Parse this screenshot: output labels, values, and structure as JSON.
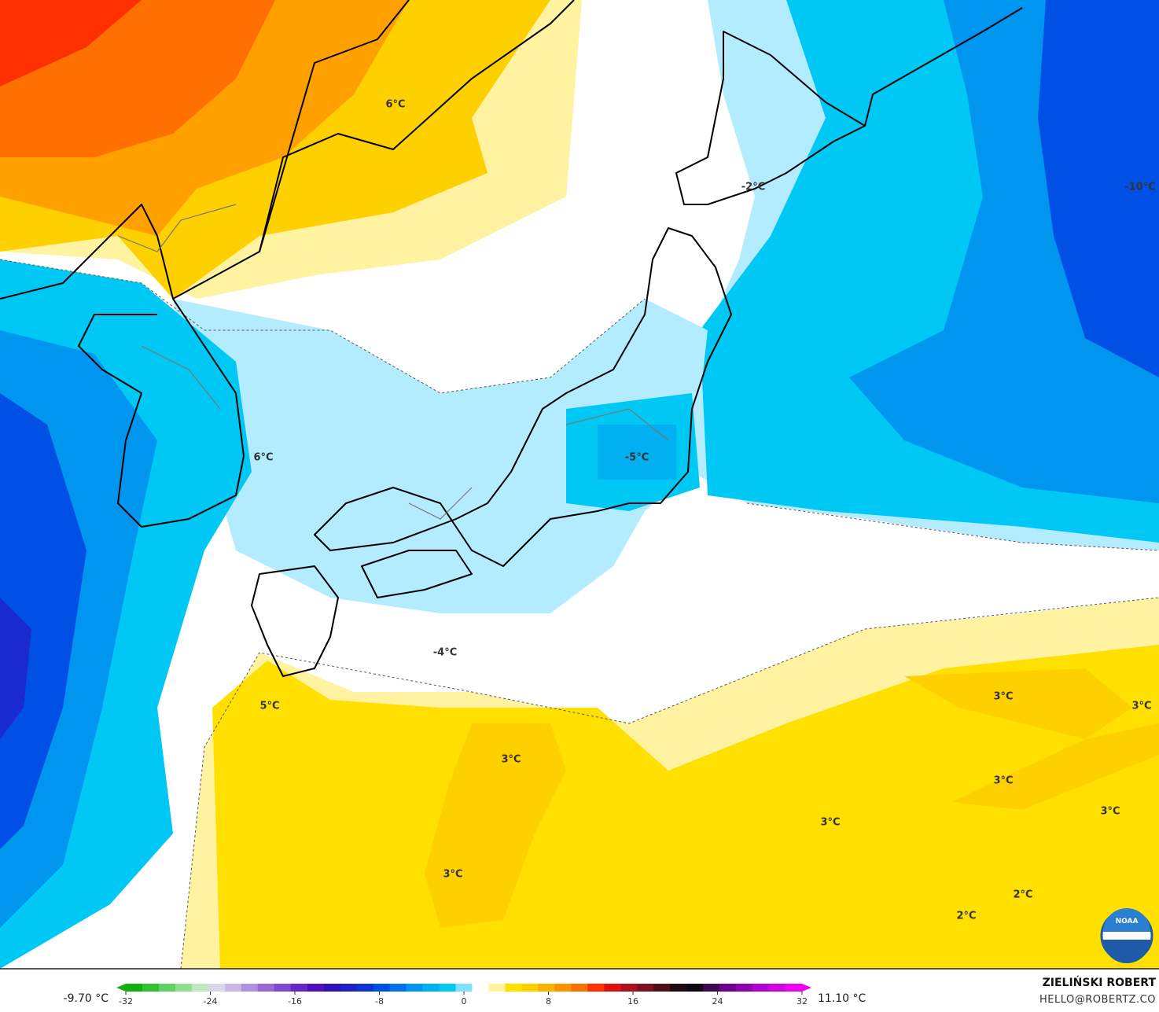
{
  "map": {
    "contour_labels": [
      "6°C",
      "-2°C",
      "-10°C",
      "6°C",
      "-5°C",
      "-4°C",
      "5°C",
      "3°C",
      "3°C",
      "3°C",
      "3°C",
      "3°C",
      "3°C",
      "2°C",
      "2°C"
    ]
  },
  "legend": {
    "min_label": "-9.70 °C",
    "max_label": "11.10 °C",
    "ticks": [
      -32,
      -24,
      -16,
      -8,
      0,
      8,
      16,
      24,
      32
    ]
  },
  "credits": {
    "author": "ZIELIŃSKI ROBERT",
    "email": "HELLO@ROBERTZ.CO",
    "logo": "NOAA"
  }
}
